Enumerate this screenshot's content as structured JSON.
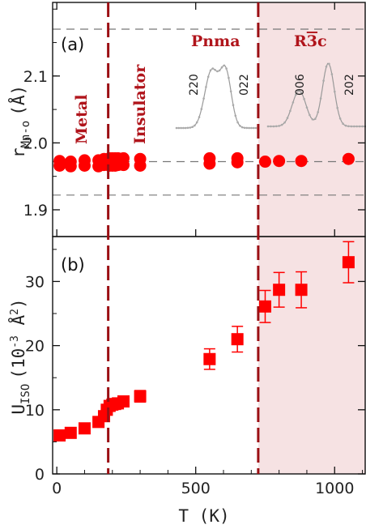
{
  "chart_data": [
    {
      "panel_label": "(a)",
      "type": "scatter",
      "ylabel_main": "r",
      "ylabel_sub": "Mn-o",
      "ylabel_unit": "(Å)",
      "ylim": [
        1.86,
        2.21
      ],
      "yticks": [
        1.9,
        2.0,
        2.1
      ],
      "reference_lines_y": [
        1.922,
        1.972,
        2.17
      ],
      "series": [
        {
          "marker": "circle",
          "points": [
            {
              "x": 10,
              "y": 1.973
            },
            {
              "x": 10,
              "y": 1.966
            },
            {
              "x": 50,
              "y": 1.972
            },
            {
              "x": 50,
              "y": 1.965
            },
            {
              "x": 100,
              "y": 1.974
            },
            {
              "x": 100,
              "y": 1.966
            },
            {
              "x": 150,
              "y": 1.974
            },
            {
              "x": 150,
              "y": 1.965
            },
            {
              "x": 170,
              "y": 1.976
            },
            {
              "x": 170,
              "y": 1.967
            },
            {
              "x": 190,
              "y": 1.977
            },
            {
              "x": 190,
              "y": 1.966
            },
            {
              "x": 200,
              "y": 1.977
            },
            {
              "x": 200,
              "y": 1.966
            },
            {
              "x": 210,
              "y": 1.977
            },
            {
              "x": 210,
              "y": 1.966
            },
            {
              "x": 220,
              "y": 1.977
            },
            {
              "x": 220,
              "y": 1.967
            },
            {
              "x": 240,
              "y": 1.977
            },
            {
              "x": 240,
              "y": 1.967
            },
            {
              "x": 300,
              "y": 1.976
            },
            {
              "x": 300,
              "y": 1.966
            },
            {
              "x": 550,
              "y": 1.977
            },
            {
              "x": 550,
              "y": 1.969
            },
            {
              "x": 650,
              "y": 1.977
            },
            {
              "x": 650,
              "y": 1.971
            },
            {
              "x": 750,
              "y": 1.972
            },
            {
              "x": 800,
              "y": 1.973
            },
            {
              "x": 880,
              "y": 1.973
            },
            {
              "x": 1050,
              "y": 1.976
            }
          ]
        }
      ]
    },
    {
      "panel_label": "(b)",
      "type": "scatter",
      "xlabel": "T (K)",
      "ylabel_main": "U",
      "ylabel_sub": "ISO",
      "ylabel_unit": "(10",
      "ylabel_exp": "-3",
      "ylabel_unit2": " Å",
      "ylabel_exp2": "2",
      "ylabel_close": ")",
      "xlim": [
        -15,
        1110
      ],
      "ylim": [
        0,
        37
      ],
      "xticks": [
        0,
        500,
        1000
      ],
      "yticks": [
        0,
        10,
        20,
        30
      ],
      "series": [
        {
          "marker": "square",
          "points": [
            {
              "x": 10,
              "y": 6.0
            },
            {
              "x": 50,
              "y": 6.4
            },
            {
              "x": 100,
              "y": 7.1
            },
            {
              "x": 150,
              "y": 8.1
            },
            {
              "x": 170,
              "y": 9.0
            },
            {
              "x": 180,
              "y": 10.0
            },
            {
              "x": 190,
              "y": 10.6
            },
            {
              "x": 200,
              "y": 10.8
            },
            {
              "x": 210,
              "y": 10.9
            },
            {
              "x": 220,
              "y": 11.0
            },
            {
              "x": 240,
              "y": 11.3
            },
            {
              "x": 300,
              "y": 12.1,
              "err": 0.9
            },
            {
              "x": 550,
              "y": 17.9,
              "err": 1.6
            },
            {
              "x": 650,
              "y": 21.0,
              "err": 2.0
            },
            {
              "x": 750,
              "y": 26.1,
              "err": 2.5
            },
            {
              "x": 800,
              "y": 28.7,
              "err": 2.7
            },
            {
              "x": 880,
              "y": 28.7,
              "err": 2.8
            },
            {
              "x": 1050,
              "y": 33.0,
              "err": 3.2
            }
          ]
        }
      ]
    }
  ],
  "phase_boundaries_T": [
    185,
    725
  ],
  "phases": {
    "metal": "Metal",
    "insulator": "Insulator",
    "pnma": "Pnma",
    "r3c": "R3c",
    "r3c_bar_digit": "3"
  },
  "insets": {
    "pnma_peaks": [
      "220",
      "022"
    ],
    "r3c_peaks": [
      "006",
      "202"
    ]
  },
  "colors": {
    "marker": "#ff0000",
    "phase_line": "#9b0f14",
    "shade": "#f6e2e3",
    "reference_line": "#777777"
  }
}
